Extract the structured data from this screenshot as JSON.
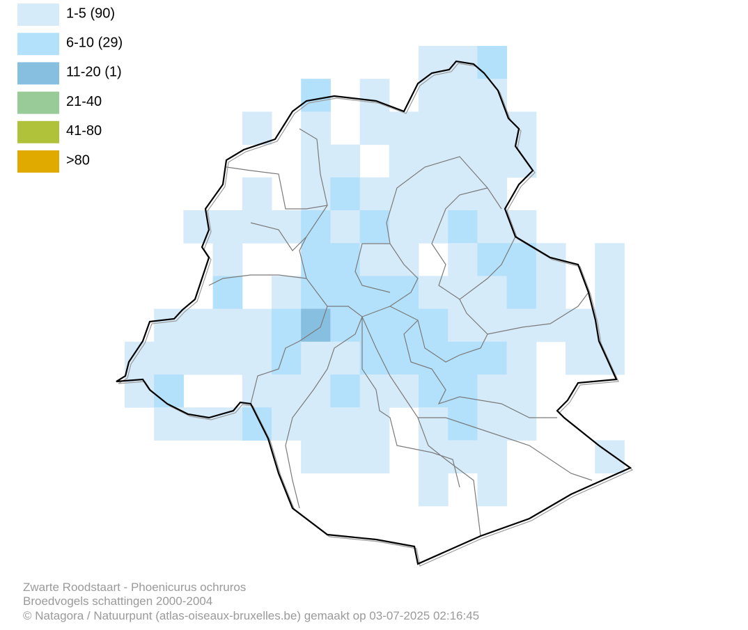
{
  "legend": {
    "items": [
      {
        "label": "1-5 (90)",
        "color": "#d6ebfa"
      },
      {
        "label": "6-10 (29)",
        "color": "#b3e0fa"
      },
      {
        "label": "11-20 (1)",
        "color": "#86bfdf"
      },
      {
        "label": "21-40",
        "color": "#98cb98"
      },
      {
        "label": "41-80",
        "color": "#b0c13a"
      },
      {
        "label": ">80",
        "color": "#e0aa00"
      }
    ]
  },
  "footer": {
    "lines": [
      "Zwarte Roodstaart - Phoenicurus ochruros",
      "Broedvogels schattingen 2000-2004",
      "© Natagora / Natuurpunt (atlas-oiseaux-bruxelles.be) gemaakt op 03-07-2025 02:16:45"
    ]
  }
}
